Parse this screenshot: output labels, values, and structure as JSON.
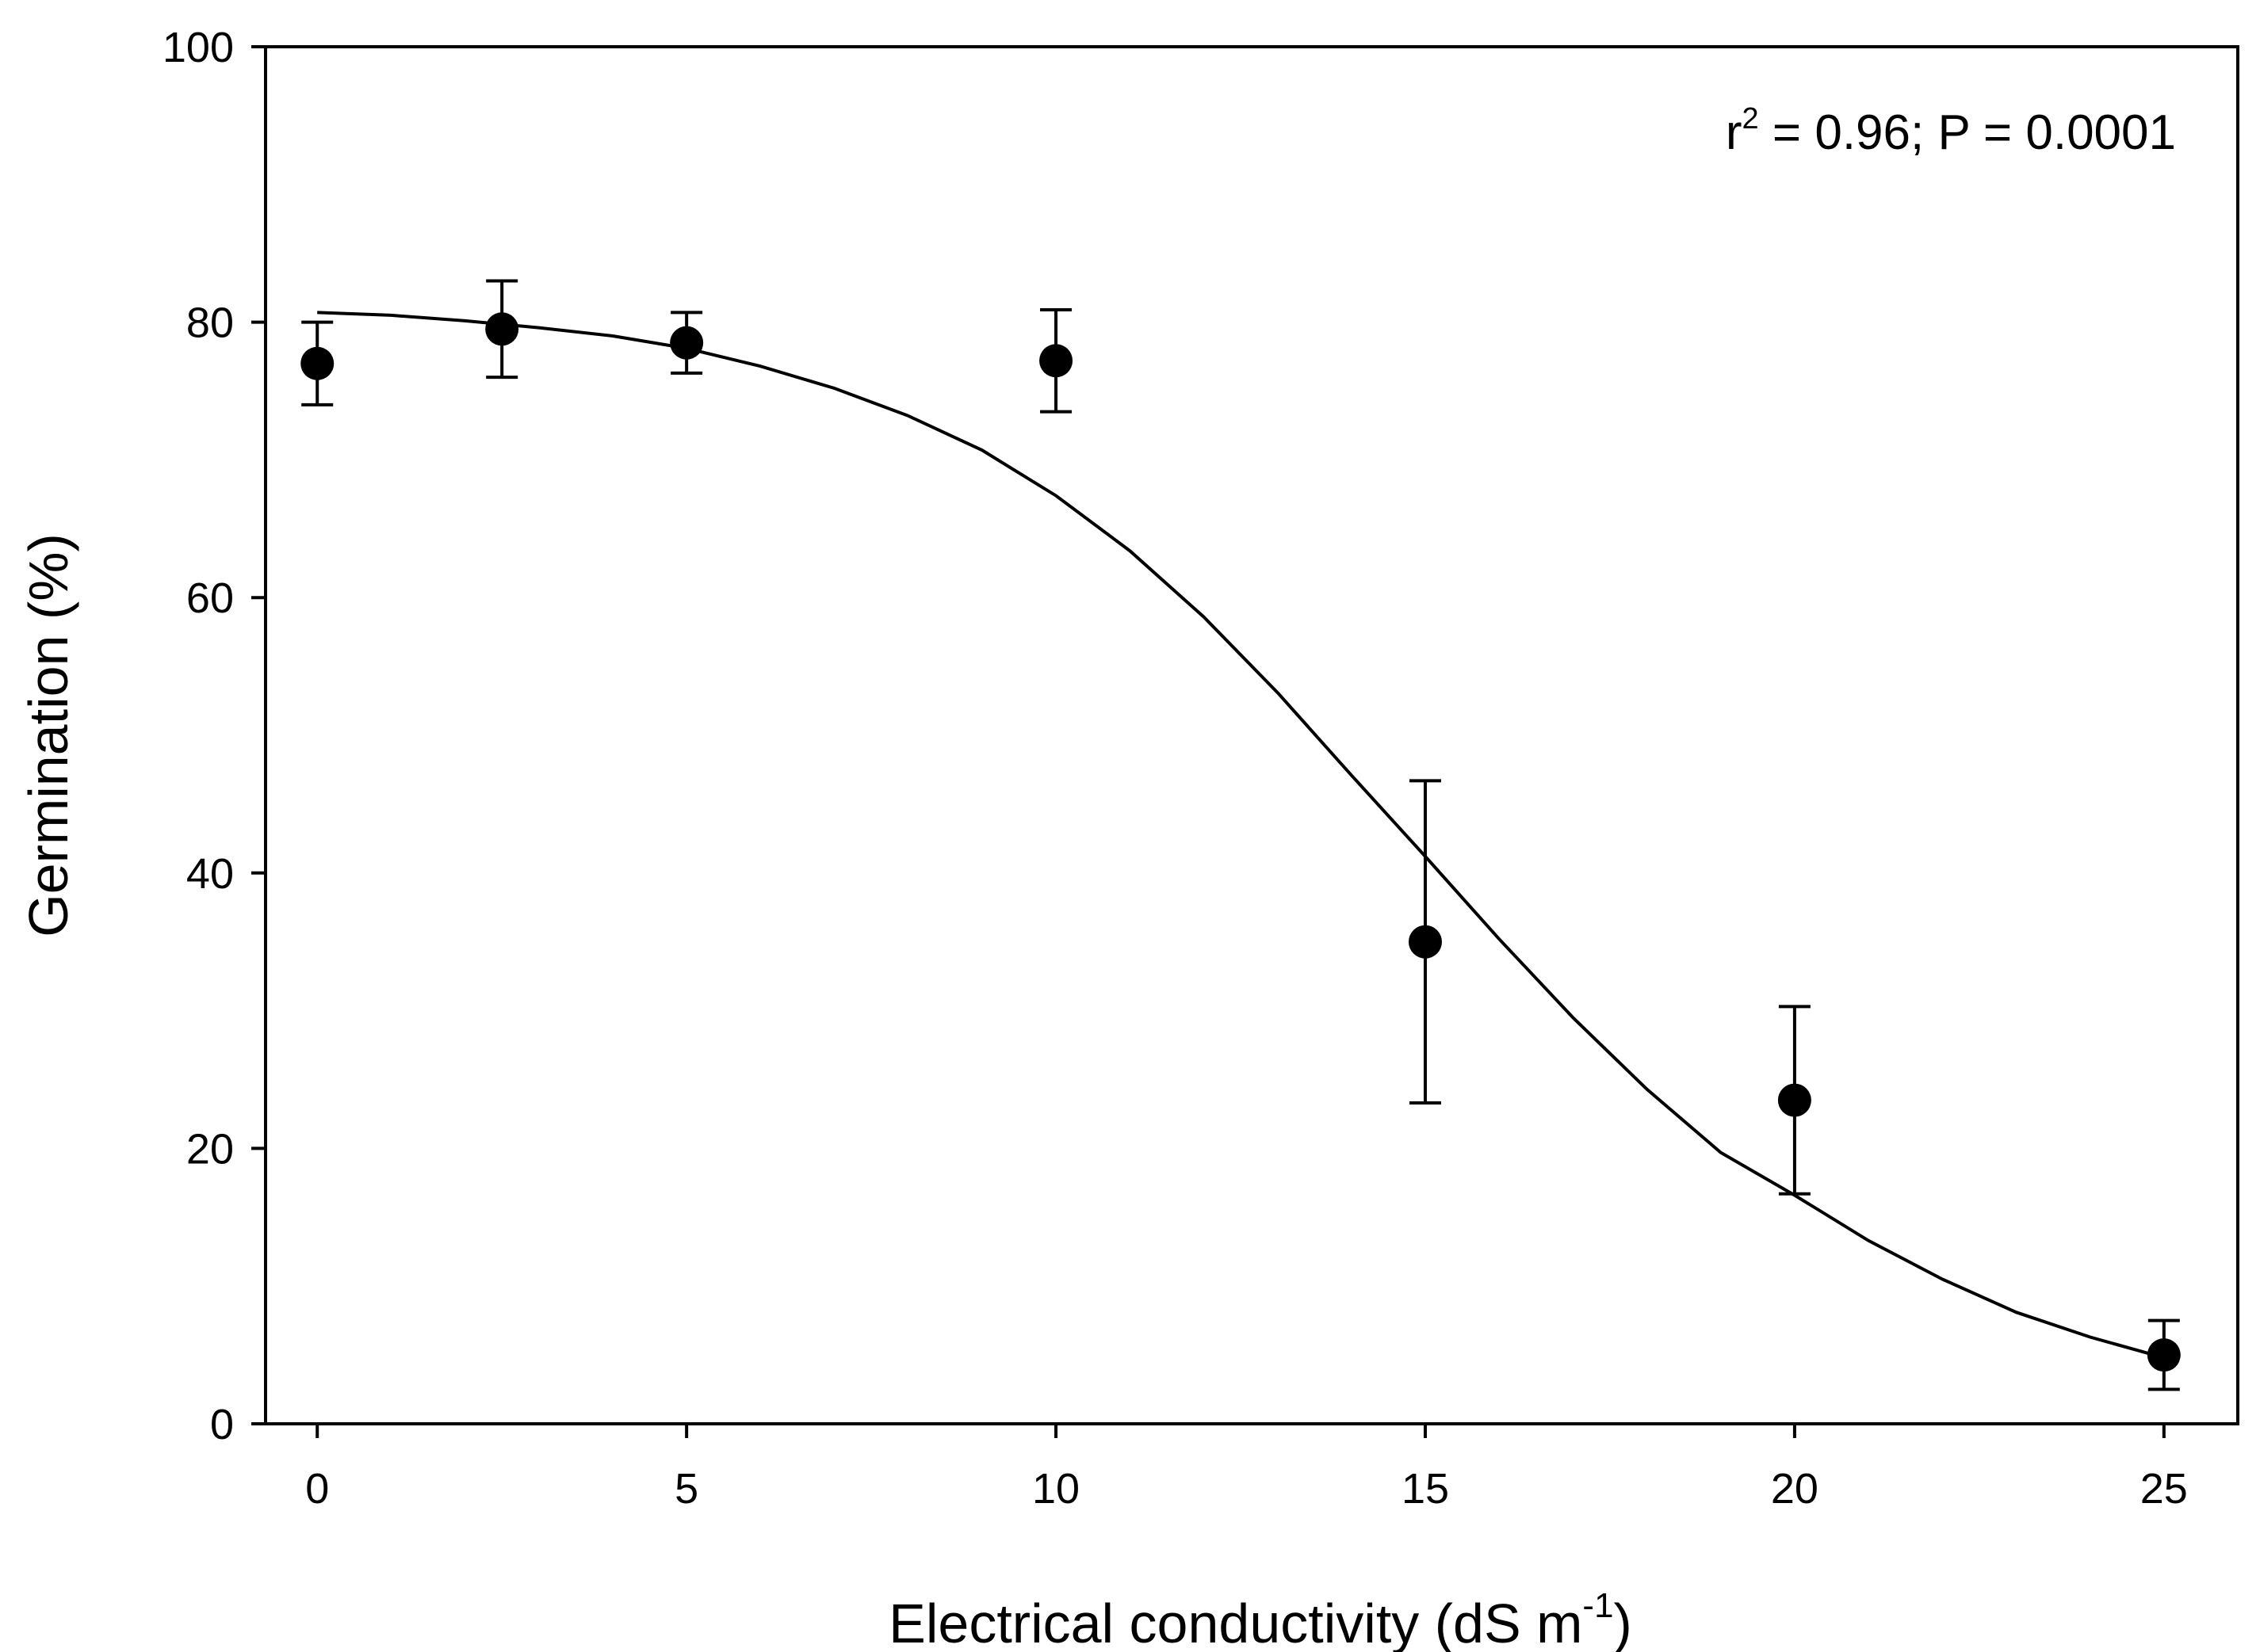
{
  "chart_data": {
    "type": "scatter",
    "title": "",
    "xlabel": "Electrical conductivity (dS m",
    "xlabel_superscript": "-1",
    "xlabel_suffix": ")",
    "ylabel": "Germination (%)",
    "xlim": [
      -0.7,
      26.0
    ],
    "ylim": [
      0,
      100
    ],
    "x_ticks": [
      0,
      5,
      10,
      15,
      20,
      25
    ],
    "y_ticks": [
      0,
      20,
      40,
      60,
      80,
      100
    ],
    "grid": false,
    "annotation": {
      "prefix": "r",
      "superscript": "2",
      "text": " = 0.96; P = 0.0001",
      "placement": "top-right"
    },
    "series": [
      {
        "name": "Germination",
        "x": [
          0,
          2.5,
          5,
          10,
          15,
          20,
          25
        ],
        "y": [
          77,
          79.5,
          78.5,
          77.2,
          35,
          23.5,
          5
        ],
        "error": [
          3,
          3.5,
          2.2,
          3.7,
          11.7,
          6.8,
          2.5
        ]
      }
    ],
    "fit_curve": {
      "model": "sigmoid",
      "x": [
        0,
        1,
        2,
        3,
        4,
        5,
        6,
        7,
        8,
        9,
        10,
        11,
        12,
        13,
        14,
        15,
        16,
        17,
        18,
        19,
        20,
        21,
        22,
        23,
        24,
        25
      ],
      "y": [
        80.7,
        80.5,
        80.1,
        79.6,
        79.0,
        78.1,
        76.8,
        75.2,
        73.2,
        70.7,
        67.4,
        63.4,
        58.6,
        53.1,
        47.1,
        41.2,
        35.2,
        29.5,
        24.3,
        19.7,
        16.6,
        13.3,
        10.5,
        8.1,
        6.3,
        4.8
      ]
    }
  }
}
